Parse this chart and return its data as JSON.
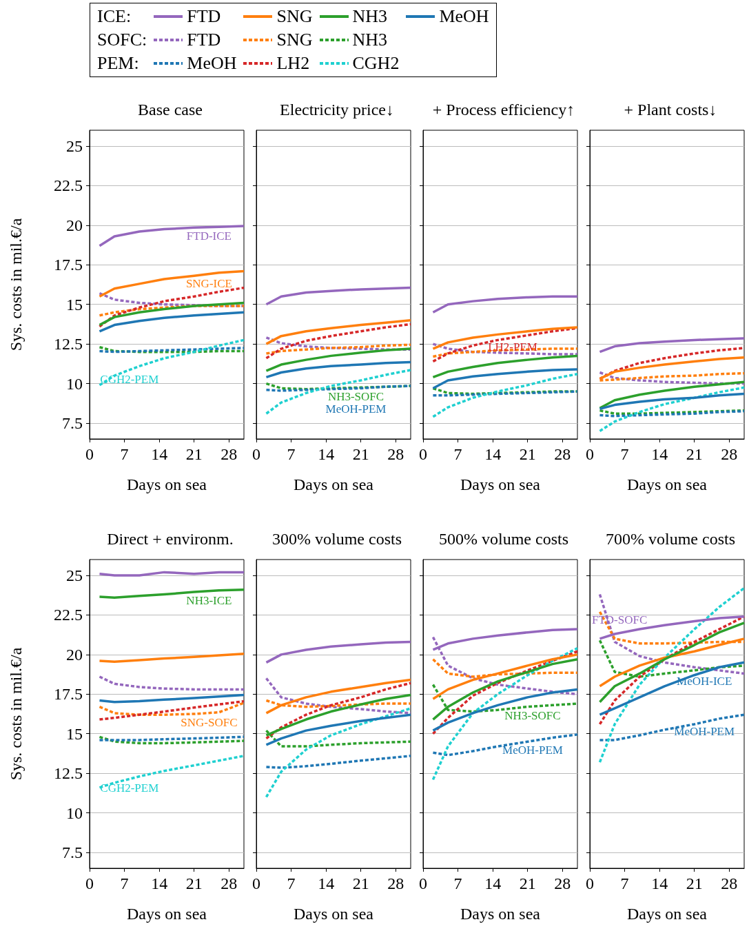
{
  "chart_data": [
    {
      "type": "line",
      "title": "Base case",
      "xlabel": "Days on sea",
      "ylabel": "Sys. costs in mil.€/a",
      "x": [
        2,
        5,
        10,
        15,
        21,
        26,
        31
      ],
      "xlim": [
        0,
        31
      ],
      "ylim": [
        6.5,
        26
      ],
      "xticks": [
        0,
        7,
        14,
        21,
        28
      ],
      "yticks": [
        7.5,
        10,
        12.5,
        15,
        17.5,
        20,
        22.5,
        25
      ],
      "grid": "y",
      "legend": "top",
      "annotations": [
        "ICE:",
        "SOFC:",
        "PEM:",
        {
          "text": "FTD-ICE",
          "x": 24,
          "y": 19.9
        },
        {
          "text": "SNG-ICE",
          "x": 24,
          "y": 16.9
        },
        {
          "text": "CGH2-PEM",
          "x": 8,
          "y": 10.85
        }
      ],
      "series": [
        {
          "name": "FTD",
          "color": "#9467bd",
          "values": [
            18.7,
            19.3,
            19.6,
            19.75,
            19.85,
            19.9,
            19.95
          ]
        },
        {
          "name": "SNG",
          "color": "#ff7f0e",
          "values": [
            15.5,
            16.0,
            16.3,
            16.6,
            16.8,
            17.0,
            17.1
          ]
        },
        {
          "name": "NH3",
          "color": "#2ca02c",
          "values": [
            13.7,
            14.2,
            14.5,
            14.7,
            14.9,
            15.0,
            15.1
          ]
        },
        {
          "name": "MeOH",
          "color": "#1f77b4",
          "values": [
            13.3,
            13.7,
            13.95,
            14.15,
            14.3,
            14.4,
            14.5
          ]
        },
        {
          "name": "FTD",
          "color": "#9467bd",
          "line_style": "dashed",
          "values": [
            15.7,
            15.3,
            15.1,
            15.0,
            14.95,
            14.9,
            14.9
          ]
        },
        {
          "name": "SNG",
          "color": "#ff7f0e",
          "line_style": "dashed",
          "values": [
            14.3,
            14.5,
            14.7,
            14.8,
            14.9,
            14.9,
            14.9
          ]
        },
        {
          "name": "NH3",
          "color": "#2ca02c",
          "line_style": "dashed",
          "values": [
            12.3,
            12.05,
            12.0,
            12.0,
            12.0,
            12.05,
            12.05
          ]
        },
        {
          "name": "MeOH",
          "color": "#1f77b4",
          "line_style": "dashed",
          "values": [
            12.05,
            12.0,
            12.05,
            12.1,
            12.15,
            12.2,
            12.25
          ]
        },
        {
          "name": "LH2",
          "color": "#d62728",
          "line_style": "dashed",
          "values": [
            13.6,
            14.3,
            14.8,
            15.2,
            15.5,
            15.8,
            16.05
          ]
        },
        {
          "name": "CGH2",
          "color": "#1fd0d0",
          "line_style": "dashed",
          "values": [
            9.9,
            10.5,
            11.1,
            11.6,
            12.0,
            12.4,
            12.75
          ]
        }
      ]
    },
    {
      "type": "line",
      "title": "Electricity price↓",
      "xlabel": "Days on sea",
      "x": [
        2,
        5,
        10,
        15,
        21,
        26,
        31
      ],
      "xlim": [
        0,
        31
      ],
      "ylim": [
        6.5,
        26
      ],
      "xticks": [
        0,
        7,
        14,
        21,
        28
      ],
      "yticks": [
        7.5,
        10,
        12.5,
        15,
        17.5,
        20,
        22.5,
        25
      ],
      "grid": "y",
      "tick_labels": "x",
      "annotations": [
        {
          "text": "NH3-SOFC",
          "x": 20,
          "y": 9.75
        },
        {
          "text": "MeOH-PEM",
          "x": 20,
          "y": 9.69
        }
      ],
      "series": [
        {
          "color": "#9467bd",
          "values": [
            15.0,
            15.5,
            15.75,
            15.85,
            15.95,
            16.0,
            16.05
          ]
        },
        {
          "color": "#ff7f0e",
          "values": [
            12.5,
            13.0,
            13.3,
            13.5,
            13.7,
            13.85,
            14.0
          ]
        },
        {
          "color": "#2ca02c",
          "values": [
            10.8,
            11.2,
            11.5,
            11.75,
            11.95,
            12.1,
            12.2
          ]
        },
        {
          "color": "#1f77b4",
          "values": [
            10.4,
            10.7,
            10.95,
            11.1,
            11.2,
            11.3,
            11.35
          ]
        },
        {
          "color": "#9467bd",
          "line_style": "dashed",
          "values": [
            12.9,
            12.55,
            12.35,
            12.25,
            12.2,
            12.15,
            12.15
          ]
        },
        {
          "color": "#ff7f0e",
          "line_style": "dashed",
          "values": [
            11.9,
            12.05,
            12.15,
            12.25,
            12.3,
            12.4,
            12.45
          ]
        },
        {
          "color": "#2ca02c",
          "line_style": "dashed",
          "values": [
            10.0,
            9.7,
            9.65,
            9.7,
            9.75,
            9.8,
            9.85
          ]
        },
        {
          "color": "#1f77b4",
          "line_style": "dashed",
          "values": [
            9.6,
            9.55,
            9.6,
            9.65,
            9.7,
            9.8,
            9.85
          ]
        },
        {
          "color": "#d62728",
          "line_style": "dashed",
          "values": [
            11.6,
            12.2,
            12.7,
            13.0,
            13.3,
            13.55,
            13.75
          ]
        },
        {
          "color": "#1fd0d0",
          "line_style": "dashed",
          "values": [
            8.1,
            8.8,
            9.4,
            9.85,
            10.2,
            10.55,
            10.85
          ]
        }
      ]
    },
    {
      "type": "line",
      "title": "+ Process efficiency↑",
      "xlabel": "Days on sea",
      "x": [
        2,
        5,
        10,
        15,
        21,
        26,
        31
      ],
      "xlim": [
        0,
        31
      ],
      "ylim": [
        6.5,
        26
      ],
      "xticks": [
        0,
        7,
        14,
        21,
        28
      ],
      "yticks": [
        7.5,
        10,
        12.5,
        15,
        17.5,
        20,
        22.5,
        25
      ],
      "grid": "y",
      "tick_labels": "x",
      "annotations": [
        {
          "text": "LH2-PEM",
          "x": 18,
          "y": 12.9
        }
      ],
      "series": [
        {
          "color": "#9467bd",
          "values": [
            14.5,
            15.0,
            15.2,
            15.35,
            15.45,
            15.5,
            15.5
          ]
        },
        {
          "color": "#ff7f0e",
          "values": [
            12.2,
            12.6,
            12.9,
            13.1,
            13.3,
            13.45,
            13.55
          ]
        },
        {
          "color": "#2ca02c",
          "values": [
            10.4,
            10.75,
            11.05,
            11.3,
            11.5,
            11.65,
            11.75
          ]
        },
        {
          "color": "#1f77b4",
          "values": [
            9.7,
            10.2,
            10.45,
            10.6,
            10.75,
            10.85,
            10.9
          ]
        },
        {
          "color": "#9467bd",
          "line_style": "dashed",
          "values": [
            12.5,
            12.2,
            12.0,
            11.95,
            11.9,
            11.85,
            11.85
          ]
        },
        {
          "color": "#ff7f0e",
          "line_style": "dashed",
          "values": [
            11.7,
            11.9,
            12.0,
            12.1,
            12.15,
            12.2,
            12.2
          ]
        },
        {
          "color": "#2ca02c",
          "line_style": "dashed",
          "values": [
            9.7,
            9.4,
            9.35,
            9.4,
            9.45,
            9.5,
            9.5
          ]
        },
        {
          "color": "#1f77b4",
          "line_style": "dashed",
          "values": [
            9.25,
            9.25,
            9.3,
            9.35,
            9.4,
            9.45,
            9.5
          ]
        },
        {
          "color": "#d62728",
          "line_style": "dashed",
          "values": [
            11.4,
            11.9,
            12.4,
            12.75,
            13.05,
            13.3,
            13.5
          ]
        },
        {
          "color": "#1fd0d0",
          "line_style": "dashed",
          "values": [
            7.9,
            8.5,
            9.1,
            9.5,
            9.9,
            10.3,
            10.6
          ]
        }
      ]
    },
    {
      "type": "line",
      "title": "+ Plant costs↓",
      "xlabel": "Days on sea",
      "x": [
        2,
        5,
        10,
        15,
        21,
        26,
        31
      ],
      "xlim": [
        0,
        31
      ],
      "ylim": [
        6.5,
        26
      ],
      "xticks": [
        0,
        7,
        14,
        21,
        28
      ],
      "yticks": [
        7.5,
        10,
        12.5,
        15,
        17.5,
        20,
        22.5,
        25
      ],
      "grid": "y",
      "tick_labels": "x",
      "series": [
        {
          "color": "#9467bd",
          "values": [
            12.0,
            12.35,
            12.55,
            12.65,
            12.75,
            12.8,
            12.85
          ]
        },
        {
          "color": "#ff7f0e",
          "values": [
            10.3,
            10.75,
            11.0,
            11.2,
            11.4,
            11.55,
            11.65
          ]
        },
        {
          "color": "#2ca02c",
          "values": [
            8.45,
            8.95,
            9.3,
            9.55,
            9.8,
            9.95,
            10.1
          ]
        },
        {
          "color": "#1f77b4",
          "values": [
            8.4,
            8.65,
            8.85,
            9.0,
            9.1,
            9.25,
            9.35
          ]
        },
        {
          "color": "#9467bd",
          "line_style": "dashed",
          "values": [
            10.7,
            10.35,
            10.2,
            10.1,
            10.05,
            10.0,
            10.0
          ]
        },
        {
          "color": "#ff7f0e",
          "line_style": "dashed",
          "values": [
            10.2,
            10.25,
            10.35,
            10.45,
            10.5,
            10.6,
            10.65
          ]
        },
        {
          "color": "#2ca02c",
          "line_style": "dashed",
          "values": [
            8.3,
            8.1,
            8.1,
            8.15,
            8.2,
            8.25,
            8.3
          ]
        },
        {
          "color": "#1f77b4",
          "line_style": "dashed",
          "values": [
            8.0,
            7.95,
            8.0,
            8.05,
            8.1,
            8.2,
            8.25
          ]
        },
        {
          "color": "#d62728",
          "line_style": "dashed",
          "values": [
            10.3,
            10.8,
            11.3,
            11.6,
            11.9,
            12.1,
            12.25
          ]
        },
        {
          "color": "#1fd0d0",
          "line_style": "dashed",
          "values": [
            7.0,
            7.6,
            8.2,
            8.7,
            9.1,
            9.45,
            9.75
          ]
        }
      ]
    },
    {
      "type": "line",
      "title": "Direct + environm.",
      "xlabel": "Days on sea",
      "ylabel": "Sys. costs in mil.€/a",
      "x": [
        2,
        5,
        10,
        15,
        21,
        26,
        31
      ],
      "xlim": [
        0,
        31
      ],
      "ylim": [
        6.5,
        26
      ],
      "xticks": [
        0,
        7,
        14,
        21,
        28
      ],
      "yticks": [
        7.5,
        10,
        12.5,
        15,
        17.5,
        20,
        22.5,
        25
      ],
      "grid": "y",
      "annotations": [
        {
          "text": "NH3-ICE",
          "x": 24,
          "y": 24.0
        },
        {
          "text": "SNG-SOFC",
          "x": 24,
          "y": 16.3
        },
        {
          "text": "CGH2-PEM",
          "x": 8,
          "y": 12.15
        }
      ],
      "series": [
        {
          "color": "#9467bd",
          "values": [
            25.1,
            25.0,
            25.0,
            25.2,
            25.1,
            25.2,
            25.2
          ]
        },
        {
          "color": "#ff7f0e",
          "values": [
            19.6,
            19.55,
            19.65,
            19.75,
            19.85,
            19.95,
            20.05
          ]
        },
        {
          "color": "#2ca02c",
          "values": [
            23.65,
            23.6,
            23.7,
            23.8,
            23.95,
            24.05,
            24.1
          ]
        },
        {
          "color": "#1f77b4",
          "values": [
            17.1,
            17.0,
            17.05,
            17.15,
            17.25,
            17.35,
            17.45
          ]
        },
        {
          "color": "#9467bd",
          "line_style": "dashed",
          "values": [
            18.6,
            18.15,
            17.95,
            17.85,
            17.8,
            17.8,
            17.8
          ]
        },
        {
          "color": "#ff7f0e",
          "line_style": "dashed",
          "values": [
            16.7,
            16.3,
            16.2,
            16.2,
            16.25,
            16.35,
            16.95
          ]
        },
        {
          "color": "#2ca02c",
          "line_style": "dashed",
          "values": [
            14.8,
            14.5,
            14.4,
            14.4,
            14.45,
            14.5,
            14.55
          ]
        },
        {
          "color": "#1f77b4",
          "line_style": "dashed",
          "values": [
            14.6,
            14.6,
            14.6,
            14.65,
            14.7,
            14.75,
            14.8
          ]
        },
        {
          "color": "#d62728",
          "line_style": "dashed",
          "values": [
            15.9,
            16.0,
            16.2,
            16.4,
            16.65,
            16.85,
            17.05
          ]
        },
        {
          "color": "#1fd0d0",
          "line_style": "dashed",
          "values": [
            11.6,
            11.9,
            12.3,
            12.65,
            13.0,
            13.3,
            13.6
          ]
        }
      ]
    },
    {
      "type": "line",
      "title": "300% volume costs",
      "xlabel": "Days on sea",
      "x": [
        2,
        5,
        10,
        15,
        21,
        26,
        31
      ],
      "xlim": [
        0,
        31
      ],
      "ylim": [
        6.5,
        26
      ],
      "xticks": [
        0,
        7,
        14,
        21,
        28
      ],
      "yticks": [
        7.5,
        10,
        12.5,
        15,
        17.5,
        20,
        22.5,
        25
      ],
      "grid": "y",
      "tick_labels": "x",
      "series": [
        {
          "color": "#9467bd",
          "values": [
            19.5,
            20.0,
            20.3,
            20.5,
            20.65,
            20.75,
            20.8
          ]
        },
        {
          "color": "#ff7f0e",
          "values": [
            16.3,
            16.8,
            17.3,
            17.65,
            17.95,
            18.2,
            18.4
          ]
        },
        {
          "color": "#2ca02c",
          "values": [
            14.9,
            15.3,
            15.9,
            16.4,
            16.85,
            17.2,
            17.45
          ]
        },
        {
          "color": "#1f77b4",
          "values": [
            14.3,
            14.7,
            15.2,
            15.5,
            15.8,
            16.0,
            16.2
          ]
        },
        {
          "color": "#9467bd",
          "line_style": "dashed",
          "values": [
            18.5,
            17.3,
            16.9,
            16.7,
            16.55,
            16.4,
            16.3
          ]
        },
        {
          "color": "#ff7f0e",
          "line_style": "dashed",
          "values": [
            17.1,
            16.8,
            16.7,
            16.75,
            16.85,
            16.9,
            16.9
          ]
        },
        {
          "color": "#2ca02c",
          "line_style": "dashed",
          "values": [
            15.2,
            14.2,
            14.2,
            14.3,
            14.4,
            14.45,
            14.5
          ]
        },
        {
          "color": "#1f77b4",
          "line_style": "dashed",
          "values": [
            12.9,
            12.85,
            12.95,
            13.1,
            13.3,
            13.45,
            13.6
          ]
        },
        {
          "color": "#d62728",
          "line_style": "dashed",
          "values": [
            14.7,
            15.4,
            16.2,
            16.8,
            17.3,
            17.8,
            18.2
          ]
        },
        {
          "color": "#1fd0d0",
          "line_style": "dashed",
          "values": [
            11.0,
            12.6,
            14.0,
            14.9,
            15.6,
            16.1,
            16.6
          ]
        }
      ]
    },
    {
      "type": "line",
      "title": "500% volume costs",
      "xlabel": "Days on sea",
      "x": [
        2,
        5,
        10,
        15,
        21,
        26,
        31
      ],
      "xlim": [
        0,
        31
      ],
      "ylim": [
        6.5,
        26
      ],
      "xticks": [
        0,
        7,
        14,
        21,
        28
      ],
      "yticks": [
        7.5,
        10,
        12.5,
        15,
        17.5,
        20,
        22.5,
        25
      ],
      "grid": "y",
      "tick_labels": "x",
      "annotations": [
        {
          "text": "NH3-SOFC",
          "x": 22,
          "y": 16.72
        },
        {
          "text": "MeOH-PEM",
          "x": 22,
          "y": 14.55
        }
      ],
      "series": [
        {
          "color": "#9467bd",
          "values": [
            20.3,
            20.7,
            21.0,
            21.2,
            21.4,
            21.55,
            21.6
          ]
        },
        {
          "color": "#ff7f0e",
          "values": [
            17.2,
            17.8,
            18.4,
            18.8,
            19.3,
            19.7,
            20.0
          ]
        },
        {
          "color": "#2ca02c",
          "values": [
            15.9,
            16.7,
            17.6,
            18.3,
            18.9,
            19.4,
            19.7
          ]
        },
        {
          "color": "#1f77b4",
          "values": [
            15.2,
            15.7,
            16.3,
            16.8,
            17.3,
            17.6,
            17.8
          ]
        },
        {
          "color": "#9467bd",
          "line_style": "dashed",
          "values": [
            21.1,
            19.3,
            18.5,
            18.1,
            17.85,
            17.65,
            17.5
          ]
        },
        {
          "color": "#ff7f0e",
          "line_style": "dashed",
          "values": [
            19.7,
            18.8,
            18.6,
            18.75,
            18.8,
            18.85,
            18.85
          ]
        },
        {
          "color": "#2ca02c",
          "line_style": "dashed",
          "values": [
            18.1,
            16.5,
            16.4,
            16.5,
            16.7,
            16.8,
            16.9
          ]
        },
        {
          "color": "#1f77b4",
          "line_style": "dashed",
          "values": [
            13.8,
            13.65,
            13.9,
            14.2,
            14.5,
            14.75,
            14.95
          ]
        },
        {
          "color": "#d62728",
          "line_style": "dashed",
          "values": [
            15.0,
            16.0,
            17.4,
            18.2,
            19.0,
            19.6,
            20.2
          ]
        },
        {
          "color": "#1fd0d0",
          "line_style": "dashed",
          "values": [
            12.1,
            14.2,
            16.3,
            17.5,
            18.7,
            19.6,
            20.4
          ]
        }
      ]
    },
    {
      "type": "line",
      "title": "700% volume costs",
      "xlabel": "Days on sea",
      "x": [
        2,
        5,
        10,
        15,
        21,
        26,
        31
      ],
      "xlim": [
        0,
        31
      ],
      "ylim": [
        6.5,
        26
      ],
      "xticks": [
        0,
        7,
        14,
        21,
        28
      ],
      "yticks": [
        7.5,
        10,
        12.5,
        15,
        17.5,
        20,
        22.5,
        25
      ],
      "grid": "y",
      "tick_labels": "x",
      "annotations": [
        {
          "text": "FTD-SOFC",
          "x": 3,
          "y": 22.8
        },
        {
          "text": "MeOH-ICE",
          "x": 23,
          "y": 18.9
        },
        {
          "text": "MeOH-PEM",
          "x": 23,
          "y": 15.74
        }
      ],
      "series": [
        {
          "color": "#9467bd",
          "values": [
            21.0,
            21.3,
            21.6,
            21.85,
            22.1,
            22.3,
            22.4
          ]
        },
        {
          "color": "#ff7f0e",
          "values": [
            18.0,
            18.6,
            19.3,
            19.8,
            20.2,
            20.6,
            21.0
          ]
        },
        {
          "color": "#2ca02c",
          "values": [
            17.0,
            18.0,
            18.8,
            19.7,
            20.6,
            21.4,
            22.0
          ]
        },
        {
          "color": "#1f77b4",
          "values": [
            16.2,
            16.6,
            17.3,
            18.0,
            18.7,
            19.2,
            19.5
          ]
        },
        {
          "color": "#9467bd",
          "line_style": "dashed",
          "values": [
            23.8,
            20.8,
            19.9,
            19.5,
            19.2,
            19.0,
            18.8
          ]
        },
        {
          "color": "#ff7f0e",
          "line_style": "dashed",
          "values": [
            22.7,
            21.0,
            20.7,
            20.7,
            20.75,
            20.8,
            20.8
          ]
        },
        {
          "color": "#2ca02c",
          "line_style": "dashed",
          "values": [
            20.9,
            18.9,
            18.6,
            18.8,
            19.0,
            19.2,
            19.3
          ]
        },
        {
          "color": "#1f77b4",
          "line_style": "dashed",
          "values": [
            14.6,
            14.6,
            14.9,
            15.25,
            15.6,
            15.95,
            16.2
          ]
        },
        {
          "color": "#d62728",
          "line_style": "dashed",
          "values": [
            15.6,
            17.1,
            18.6,
            19.7,
            20.8,
            21.6,
            22.4
          ]
        },
        {
          "color": "#1fd0d0",
          "line_style": "dashed",
          "values": [
            13.2,
            15.6,
            18.1,
            19.8,
            21.6,
            23.0,
            24.2
          ]
        }
      ]
    }
  ]
}
